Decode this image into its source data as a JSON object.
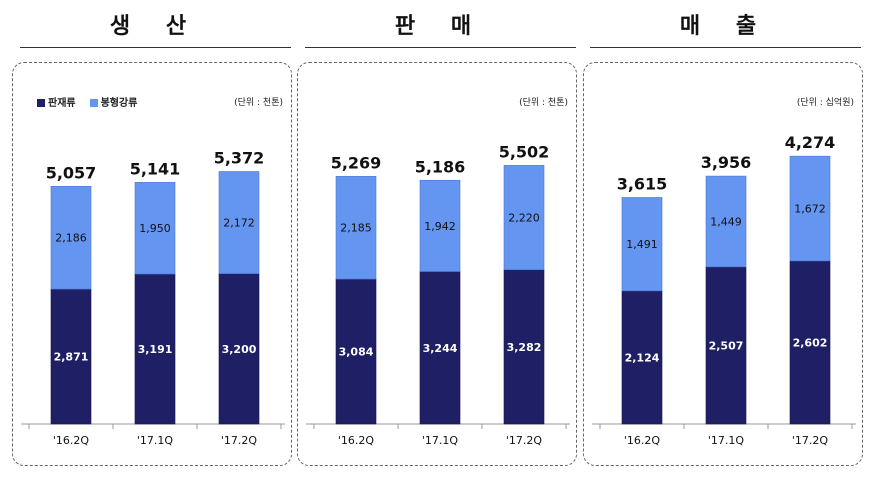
{
  "colors": {
    "dark": "#1f1f66",
    "light": "#6495f0"
  },
  "chart_data": [
    {
      "type": "bar",
      "stacked": true,
      "title": "생 산",
      "unit": "(단위 : 천톤)",
      "ylim": [
        0,
        6000
      ],
      "categories": [
        "'16.2Q",
        "'17.1Q",
        "'17.2Q"
      ],
      "series": [
        {
          "name": "판재류",
          "values": [
            2871,
            3191,
            3200
          ]
        },
        {
          "name": "봉형강류",
          "values": [
            2186,
            1950,
            2172
          ]
        }
      ],
      "totals": [
        5057,
        5141,
        5372
      ],
      "legend": "top-left"
    },
    {
      "type": "bar",
      "stacked": true,
      "title": "판 매",
      "unit": "(단위 : 천톤)",
      "ylim": [
        0,
        6000
      ],
      "categories": [
        "'16.2Q",
        "'17.1Q",
        "'17.2Q"
      ],
      "series": [
        {
          "name": "판재류",
          "values": [
            3084,
            3244,
            3282
          ]
        },
        {
          "name": "봉형강류",
          "values": [
            2185,
            1942,
            2220
          ]
        }
      ],
      "totals": [
        5269,
        5186,
        5502
      ]
    },
    {
      "type": "bar",
      "stacked": true,
      "title": "매 출",
      "unit": "(단위 : 십억원)",
      "ylim": [
        0,
        4500
      ],
      "categories": [
        "'16.2Q",
        "'17.1Q",
        "'17.2Q"
      ],
      "series": [
        {
          "name": "판재류",
          "values": [
            2124,
            2507,
            2602
          ]
        },
        {
          "name": "봉형강류",
          "values": [
            1491,
            1449,
            1672
          ]
        }
      ],
      "totals": [
        3615,
        3956,
        4274
      ]
    }
  ]
}
